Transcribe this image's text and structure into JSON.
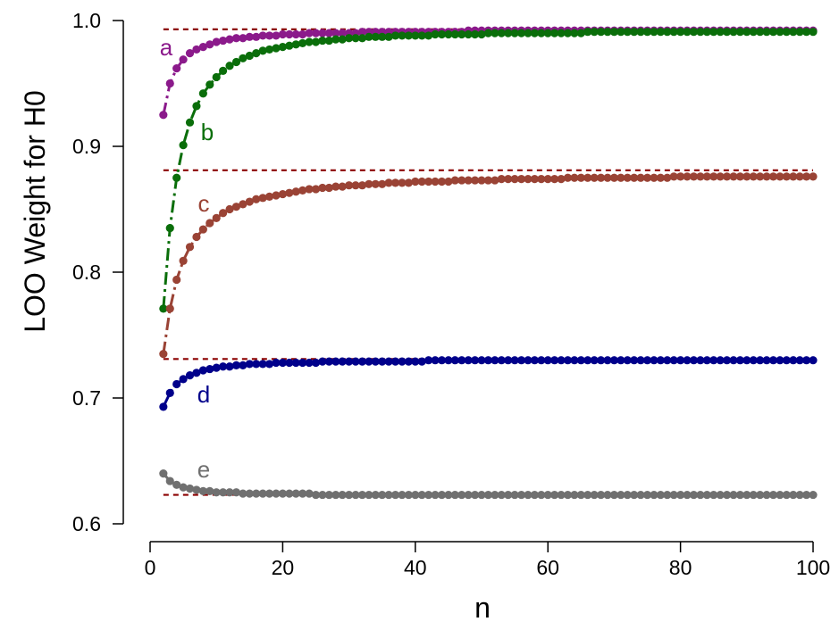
{
  "chart_data": {
    "type": "scatter",
    "xlabel": "n",
    "ylabel": "LOO Weight for H0",
    "xlim": [
      0,
      100
    ],
    "ylim": [
      0.6,
      1.0
    ],
    "x_ticks": [
      "0",
      "20",
      "40",
      "60",
      "80",
      "100"
    ],
    "x_tick_values": [
      0,
      20,
      40,
      60,
      80,
      100
    ],
    "y_ticks": [
      "0.6",
      "0.7",
      "0.8",
      "0.9",
      "1.0"
    ],
    "y_tick_values": [
      0.6,
      0.7,
      0.8,
      0.9,
      1.0
    ],
    "x": [
      2,
      3,
      4,
      5,
      6,
      7,
      8,
      9,
      10,
      11,
      12,
      13,
      14,
      15,
      16,
      17,
      18,
      19,
      20,
      21,
      22,
      23,
      24,
      25,
      26,
      27,
      28,
      29,
      30,
      31,
      32,
      33,
      34,
      35,
      36,
      37,
      38,
      39,
      40,
      41,
      42,
      43,
      44,
      45,
      46,
      47,
      48,
      49,
      50,
      51,
      52,
      53,
      54,
      55,
      56,
      57,
      58,
      59,
      60,
      61,
      62,
      63,
      64,
      65,
      66,
      67,
      68,
      69,
      70,
      71,
      72,
      73,
      74,
      75,
      76,
      77,
      78,
      79,
      80,
      81,
      82,
      83,
      84,
      85,
      86,
      87,
      88,
      89,
      90,
      91,
      92,
      93,
      94,
      95,
      96,
      97,
      98,
      99,
      100
    ],
    "reference_lines": [
      0.993,
      0.881,
      0.731,
      0.623
    ],
    "reference_color": "#8B0000",
    "series": [
      {
        "label": "a",
        "color": "#8B1A8B",
        "values": [
          0.925,
          0.95,
          0.962,
          0.969,
          0.974,
          0.977,
          0.979,
          0.981,
          0.983,
          0.984,
          0.985,
          0.986,
          0.986,
          0.987,
          0.987,
          0.988,
          0.988,
          0.988,
          0.989,
          0.989,
          0.989,
          0.989,
          0.99,
          0.99,
          0.99,
          0.99,
          0.99,
          0.99,
          0.99,
          0.99,
          0.991,
          0.991,
          0.991,
          0.991,
          0.991,
          0.991,
          0.991,
          0.991,
          0.991,
          0.991,
          0.991,
          0.991,
          0.991,
          0.991,
          0.991,
          0.991,
          0.992,
          0.992,
          0.992,
          0.992,
          0.992,
          0.992,
          0.992,
          0.992,
          0.992,
          0.992,
          0.992,
          0.992,
          0.992,
          0.992,
          0.992,
          0.992,
          0.992,
          0.992,
          0.992,
          0.992,
          0.992,
          0.992,
          0.992,
          0.992,
          0.992,
          0.992,
          0.992,
          0.992,
          0.992,
          0.992,
          0.992,
          0.992,
          0.992,
          0.992,
          0.992,
          0.992,
          0.992,
          0.992,
          0.992,
          0.992,
          0.992,
          0.992,
          0.992,
          0.992,
          0.992,
          0.992,
          0.992,
          0.992,
          0.992,
          0.992,
          0.992,
          0.992,
          0.992
        ]
      },
      {
        "label": "b",
        "color": "#0A6E0A",
        "values": [
          0.771,
          0.835,
          0.875,
          0.901,
          0.919,
          0.932,
          0.942,
          0.949,
          0.955,
          0.96,
          0.964,
          0.967,
          0.97,
          0.972,
          0.974,
          0.976,
          0.977,
          0.978,
          0.979,
          0.98,
          0.981,
          0.982,
          0.983,
          0.983,
          0.984,
          0.984,
          0.985,
          0.985,
          0.986,
          0.986,
          0.986,
          0.987,
          0.987,
          0.987,
          0.987,
          0.988,
          0.988,
          0.988,
          0.988,
          0.988,
          0.988,
          0.989,
          0.989,
          0.989,
          0.989,
          0.989,
          0.989,
          0.989,
          0.989,
          0.99,
          0.99,
          0.99,
          0.99,
          0.99,
          0.99,
          0.99,
          0.99,
          0.99,
          0.99,
          0.99,
          0.99,
          0.99,
          0.99,
          0.99,
          0.991,
          0.991,
          0.991,
          0.991,
          0.991,
          0.991,
          0.991,
          0.991,
          0.991,
          0.991,
          0.991,
          0.991,
          0.991,
          0.991,
          0.991,
          0.991,
          0.991,
          0.991,
          0.991,
          0.991,
          0.991,
          0.991,
          0.991,
          0.991,
          0.991,
          0.991,
          0.991,
          0.991,
          0.991,
          0.991,
          0.991,
          0.991,
          0.991,
          0.991,
          0.991
        ]
      },
      {
        "label": "c",
        "color": "#9A4335",
        "values": [
          0.735,
          0.771,
          0.794,
          0.809,
          0.82,
          0.828,
          0.834,
          0.839,
          0.843,
          0.847,
          0.85,
          0.852,
          0.854,
          0.856,
          0.858,
          0.859,
          0.86,
          0.861,
          0.862,
          0.863,
          0.864,
          0.865,
          0.866,
          0.866,
          0.867,
          0.867,
          0.868,
          0.868,
          0.869,
          0.869,
          0.869,
          0.87,
          0.87,
          0.87,
          0.871,
          0.871,
          0.871,
          0.871,
          0.872,
          0.872,
          0.872,
          0.872,
          0.872,
          0.872,
          0.873,
          0.873,
          0.873,
          0.873,
          0.873,
          0.873,
          0.873,
          0.874,
          0.874,
          0.874,
          0.874,
          0.874,
          0.874,
          0.874,
          0.874,
          0.874,
          0.874,
          0.875,
          0.875,
          0.875,
          0.875,
          0.875,
          0.875,
          0.875,
          0.875,
          0.875,
          0.875,
          0.875,
          0.875,
          0.875,
          0.875,
          0.875,
          0.875,
          0.876,
          0.876,
          0.876,
          0.876,
          0.876,
          0.876,
          0.876,
          0.876,
          0.876,
          0.876,
          0.876,
          0.876,
          0.876,
          0.876,
          0.876,
          0.876,
          0.876,
          0.876,
          0.876,
          0.876,
          0.876,
          0.876
        ]
      },
      {
        "label": "d",
        "color": "#00008B",
        "values": [
          0.693,
          0.704,
          0.711,
          0.715,
          0.718,
          0.72,
          0.722,
          0.723,
          0.724,
          0.725,
          0.725,
          0.726,
          0.726,
          0.727,
          0.727,
          0.727,
          0.727,
          0.728,
          0.728,
          0.728,
          0.728,
          0.728,
          0.728,
          0.728,
          0.729,
          0.729,
          0.729,
          0.729,
          0.729,
          0.729,
          0.729,
          0.729,
          0.729,
          0.729,
          0.729,
          0.729,
          0.729,
          0.729,
          0.729,
          0.729,
          0.73,
          0.73,
          0.73,
          0.73,
          0.73,
          0.73,
          0.73,
          0.73,
          0.73,
          0.73,
          0.73,
          0.73,
          0.73,
          0.73,
          0.73,
          0.73,
          0.73,
          0.73,
          0.73,
          0.73,
          0.73,
          0.73,
          0.73,
          0.73,
          0.73,
          0.73,
          0.73,
          0.73,
          0.73,
          0.73,
          0.73,
          0.73,
          0.73,
          0.73,
          0.73,
          0.73,
          0.73,
          0.73,
          0.73,
          0.73,
          0.73,
          0.73,
          0.73,
          0.73,
          0.73,
          0.73,
          0.73,
          0.73,
          0.73,
          0.73,
          0.73,
          0.73,
          0.73,
          0.73,
          0.73,
          0.73,
          0.73,
          0.73,
          0.73
        ]
      },
      {
        "label": "e",
        "color": "#707070",
        "values": [
          0.64,
          0.634,
          0.631,
          0.629,
          0.628,
          0.627,
          0.626,
          0.626,
          0.625,
          0.625,
          0.625,
          0.625,
          0.624,
          0.624,
          0.624,
          0.624,
          0.624,
          0.624,
          0.624,
          0.624,
          0.624,
          0.624,
          0.624,
          0.623,
          0.623,
          0.623,
          0.623,
          0.623,
          0.623,
          0.623,
          0.623,
          0.623,
          0.623,
          0.623,
          0.623,
          0.623,
          0.623,
          0.623,
          0.623,
          0.623,
          0.623,
          0.623,
          0.623,
          0.623,
          0.623,
          0.623,
          0.623,
          0.623,
          0.623,
          0.623,
          0.623,
          0.623,
          0.623,
          0.623,
          0.623,
          0.623,
          0.623,
          0.623,
          0.623,
          0.623,
          0.623,
          0.623,
          0.623,
          0.623,
          0.623,
          0.623,
          0.623,
          0.623,
          0.623,
          0.623,
          0.623,
          0.623,
          0.623,
          0.623,
          0.623,
          0.623,
          0.623,
          0.623,
          0.623,
          0.623,
          0.623,
          0.623,
          0.623,
          0.623,
          0.623,
          0.623,
          0.623,
          0.623,
          0.623,
          0.623,
          0.623,
          0.623,
          0.623,
          0.623,
          0.623,
          0.623,
          0.623,
          0.623,
          0.623
        ]
      }
    ]
  }
}
